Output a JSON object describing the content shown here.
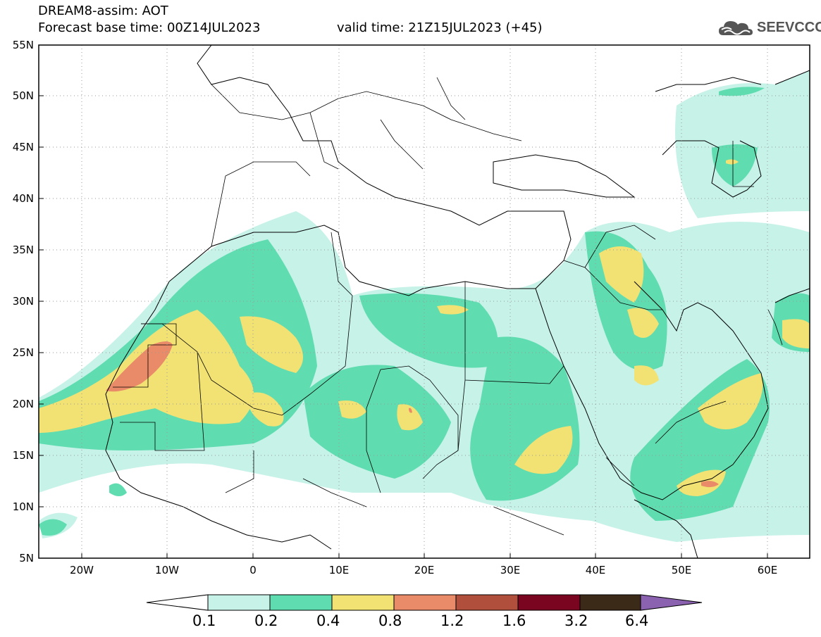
{
  "header": {
    "title_line1": "DREAM8-assim: AOT",
    "title_line2": "Forecast base time: 00Z14JUL2023",
    "valid_time": "valid time: 21Z15JUL2023 (+45)",
    "logo_text": "SEEVCCC"
  },
  "map": {
    "lat_labels": [
      "55N",
      "50N",
      "45N",
      "40N",
      "35N",
      "30N",
      "25N",
      "20N",
      "15N",
      "10N",
      "5N"
    ],
    "lon_labels": [
      "20W",
      "10W",
      "0",
      "10E",
      "20E",
      "30E",
      "40E",
      "50E",
      "60E"
    ],
    "lat_range": [
      5,
      55
    ],
    "lon_range": [
      -25,
      65
    ],
    "grid": "dotted"
  },
  "colorbar": {
    "labels": [
      "0.1",
      "0.2",
      "0.4",
      "0.8",
      "1.2",
      "1.6",
      "3.2",
      "6.4"
    ],
    "colors": [
      "#c7f2e8",
      "#5fdcb0",
      "#f2e274",
      "#e98a68",
      "#b04f3c",
      "#7a0520",
      "#3b2a18",
      "#8a62b0"
    ]
  }
}
